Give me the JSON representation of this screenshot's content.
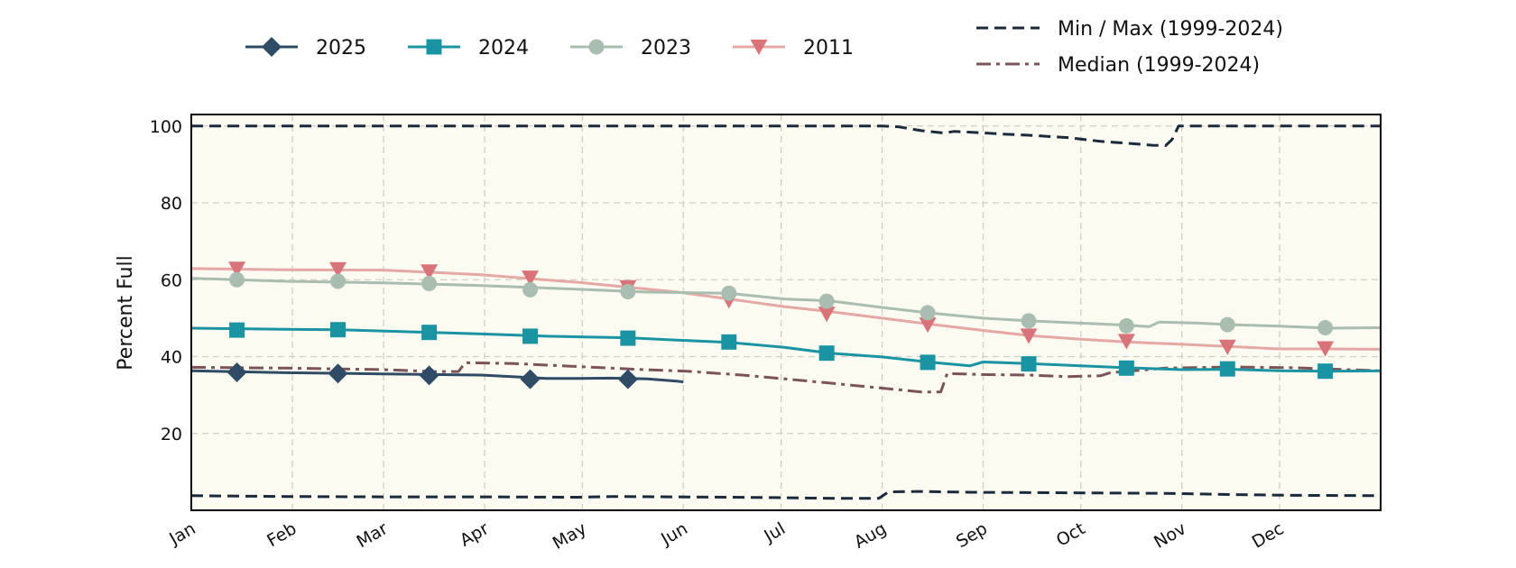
{
  "chart_data": {
    "type": "line",
    "title": "",
    "xlabel": "",
    "ylabel": "Percent Full",
    "x_tick_labels": [
      "Jan",
      "Feb",
      "Mar",
      "Apr",
      "May",
      "Jun",
      "Jul",
      "Aug",
      "Sep",
      "Oct",
      "Nov",
      "Dec"
    ],
    "y_ticks": [
      20,
      40,
      60,
      80,
      100
    ],
    "ylim": [
      0,
      103
    ],
    "xlim": [
      1,
      366
    ],
    "grid": true,
    "legend_position": "top",
    "background_color": "#fcfbf1",
    "series": [
      {
        "name": "2025",
        "color": "#2f4b66",
        "marker": "diamond",
        "style": "solid",
        "points": [
          [
            1,
            36.3
          ],
          [
            30,
            35.8
          ],
          [
            60,
            35.5
          ],
          [
            90,
            35.2
          ],
          [
            110,
            34.3
          ],
          [
            120,
            34.3
          ],
          [
            130,
            34.4
          ],
          [
            141,
            34.2
          ],
          [
            150,
            33.6
          ],
          [
            152,
            33.4
          ]
        ],
        "markers": [
          [
            15,
            35.9
          ],
          [
            46,
            35.6
          ],
          [
            74,
            35.1
          ],
          [
            105,
            34.1
          ],
          [
            135,
            34.1
          ]
        ]
      },
      {
        "name": "2024",
        "color": "#1a93a3",
        "marker": "square",
        "style": "solid",
        "points": [
          [
            1,
            47.4
          ],
          [
            30,
            47.1
          ],
          [
            46,
            47.0
          ],
          [
            70,
            46.4
          ],
          [
            90,
            45.9
          ],
          [
            110,
            45.3
          ],
          [
            135,
            44.9
          ],
          [
            150,
            44.3
          ],
          [
            166,
            43.7
          ],
          [
            183,
            42.4
          ],
          [
            197,
            40.9
          ],
          [
            213,
            39.9
          ],
          [
            227,
            38.6
          ],
          [
            240,
            37.6
          ],
          [
            244,
            38.6
          ],
          [
            258,
            38.2
          ],
          [
            274,
            37.6
          ],
          [
            288,
            37.1
          ],
          [
            305,
            36.6
          ],
          [
            320,
            36.7
          ],
          [
            335,
            36.3
          ],
          [
            350,
            36.2
          ],
          [
            366,
            36.3
          ]
        ],
        "markers": [
          [
            15,
            46.9
          ],
          [
            46,
            47.0
          ],
          [
            74,
            46.3
          ],
          [
            105,
            45.3
          ],
          [
            135,
            44.8
          ],
          [
            166,
            43.8
          ],
          [
            196,
            40.9
          ],
          [
            227,
            38.5
          ],
          [
            258,
            38.1
          ],
          [
            288,
            37.0
          ],
          [
            319,
            36.8
          ],
          [
            349,
            36.2
          ]
        ]
      },
      {
        "name": "2023",
        "color": "#a9bdb1",
        "marker": "circle",
        "style": "solid",
        "points": [
          [
            1,
            60.4
          ],
          [
            30,
            59.6
          ],
          [
            60,
            59.2
          ],
          [
            90,
            58.5
          ],
          [
            120,
            57.5
          ],
          [
            140,
            56.8
          ],
          [
            166,
            56.5
          ],
          [
            183,
            55.0
          ],
          [
            197,
            54.5
          ],
          [
            213,
            52.8
          ],
          [
            227,
            51.4
          ],
          [
            244,
            50.0
          ],
          [
            258,
            49.3
          ],
          [
            274,
            48.7
          ],
          [
            288,
            48.2
          ],
          [
            295,
            47.8
          ],
          [
            298,
            49.0
          ],
          [
            310,
            48.7
          ],
          [
            320,
            48.3
          ],
          [
            335,
            47.9
          ],
          [
            350,
            47.4
          ],
          [
            366,
            47.5
          ]
        ],
        "markers": [
          [
            15,
            60.0
          ],
          [
            46,
            59.6
          ],
          [
            74,
            59.0
          ],
          [
            105,
            57.4
          ],
          [
            135,
            56.9
          ],
          [
            166,
            56.5
          ],
          [
            196,
            54.4
          ],
          [
            227,
            51.4
          ],
          [
            258,
            49.3
          ],
          [
            288,
            48.0
          ],
          [
            319,
            48.3
          ],
          [
            349,
            47.5
          ]
        ]
      },
      {
        "name": "2011",
        "color": "#d9737a",
        "line_color": "#e6a8a4",
        "marker": "triangle_down",
        "style": "solid",
        "points": [
          [
            1,
            62.9
          ],
          [
            30,
            62.6
          ],
          [
            60,
            62.5
          ],
          [
            90,
            61.3
          ],
          [
            120,
            59.3
          ],
          [
            150,
            56.8
          ],
          [
            166,
            55.0
          ],
          [
            183,
            53.0
          ],
          [
            197,
            51.7
          ],
          [
            213,
            50.0
          ],
          [
            227,
            48.5
          ],
          [
            244,
            46.8
          ],
          [
            258,
            45.5
          ],
          [
            274,
            44.5
          ],
          [
            288,
            43.8
          ],
          [
            305,
            43.2
          ],
          [
            320,
            42.6
          ],
          [
            335,
            42.0
          ],
          [
            350,
            42.0
          ],
          [
            366,
            41.9
          ]
        ],
        "markers": [
          [
            15,
            62.8
          ],
          [
            46,
            62.7
          ],
          [
            74,
            62.1
          ],
          [
            105,
            60.5
          ],
          [
            135,
            58.0
          ],
          [
            166,
            54.6
          ],
          [
            196,
            51.1
          ],
          [
            227,
            48.3
          ],
          [
            258,
            45.4
          ],
          [
            288,
            44.0
          ],
          [
            319,
            42.5
          ],
          [
            349,
            42.1
          ]
        ]
      },
      {
        "name": "Min / Max (1999-2024)",
        "color": "#1b2a3a",
        "marker": "none",
        "style": "dashed",
        "parts": [
          [
            [
              1,
              100.0
            ],
            [
              30,
              100.0
            ],
            [
              60,
              100.0
            ],
            [
              90,
              100.0
            ],
            [
              120,
              100.0
            ],
            [
              150,
              100.0
            ],
            [
              180,
              100.0
            ],
            [
              213,
              100.0
            ],
            [
              218,
              99.8
            ],
            [
              225,
              98.8
            ],
            [
              232,
              98.2
            ],
            [
              235,
              98.6
            ],
            [
              240,
              98.4
            ],
            [
              250,
              97.9
            ],
            [
              258,
              97.6
            ],
            [
              270,
              97.0
            ],
            [
              280,
              96.0
            ],
            [
              290,
              95.4
            ],
            [
              296,
              95.0
            ],
            [
              300,
              94.9
            ],
            [
              302,
              96.5
            ],
            [
              304,
              100.0
            ],
            [
              320,
              100.0
            ],
            [
              340,
              100.0
            ],
            [
              366,
              100.0
            ]
          ],
          [
            [
              1,
              3.8
            ],
            [
              30,
              3.6
            ],
            [
              60,
              3.5
            ],
            [
              90,
              3.5
            ],
            [
              120,
              3.4
            ],
            [
              130,
              3.6
            ],
            [
              150,
              3.5
            ],
            [
              180,
              3.3
            ],
            [
              200,
              3.1
            ],
            [
              212,
              3.1
            ],
            [
              215,
              4.8
            ],
            [
              225,
              4.9
            ],
            [
              240,
              4.7
            ],
            [
              260,
              4.6
            ],
            [
              280,
              4.5
            ],
            [
              300,
              4.4
            ],
            [
              320,
              4.1
            ],
            [
              340,
              3.9
            ],
            [
              366,
              3.8
            ]
          ]
        ]
      },
      {
        "name": "Median (1999-2024)",
        "color": "#7d535a",
        "marker": "none",
        "style": "dashdot",
        "parts": [
          [
            [
              1,
              37.2
            ],
            [
              30,
              37.0
            ],
            [
              60,
              36.6
            ],
            [
              75,
              36.1
            ],
            [
              83,
              36.1
            ],
            [
              85,
              38.4
            ],
            [
              100,
              38.2
            ],
            [
              120,
              37.4
            ],
            [
              140,
              36.6
            ],
            [
              153,
              36.2
            ],
            [
              170,
              35.2
            ],
            [
              183,
              34.2
            ],
            [
              197,
              33.1
            ],
            [
              213,
              31.8
            ],
            [
              225,
              30.8
            ],
            [
              231,
              30.8
            ],
            [
              233,
              35.6
            ],
            [
              245,
              35.3
            ],
            [
              258,
              35.2
            ],
            [
              270,
              34.8
            ],
            [
              280,
              35.0
            ],
            [
              283,
              35.8
            ],
            [
              300,
              37.0
            ],
            [
              320,
              37.3
            ],
            [
              340,
              37.1
            ],
            [
              366,
              36.3
            ]
          ]
        ]
      }
    ]
  }
}
